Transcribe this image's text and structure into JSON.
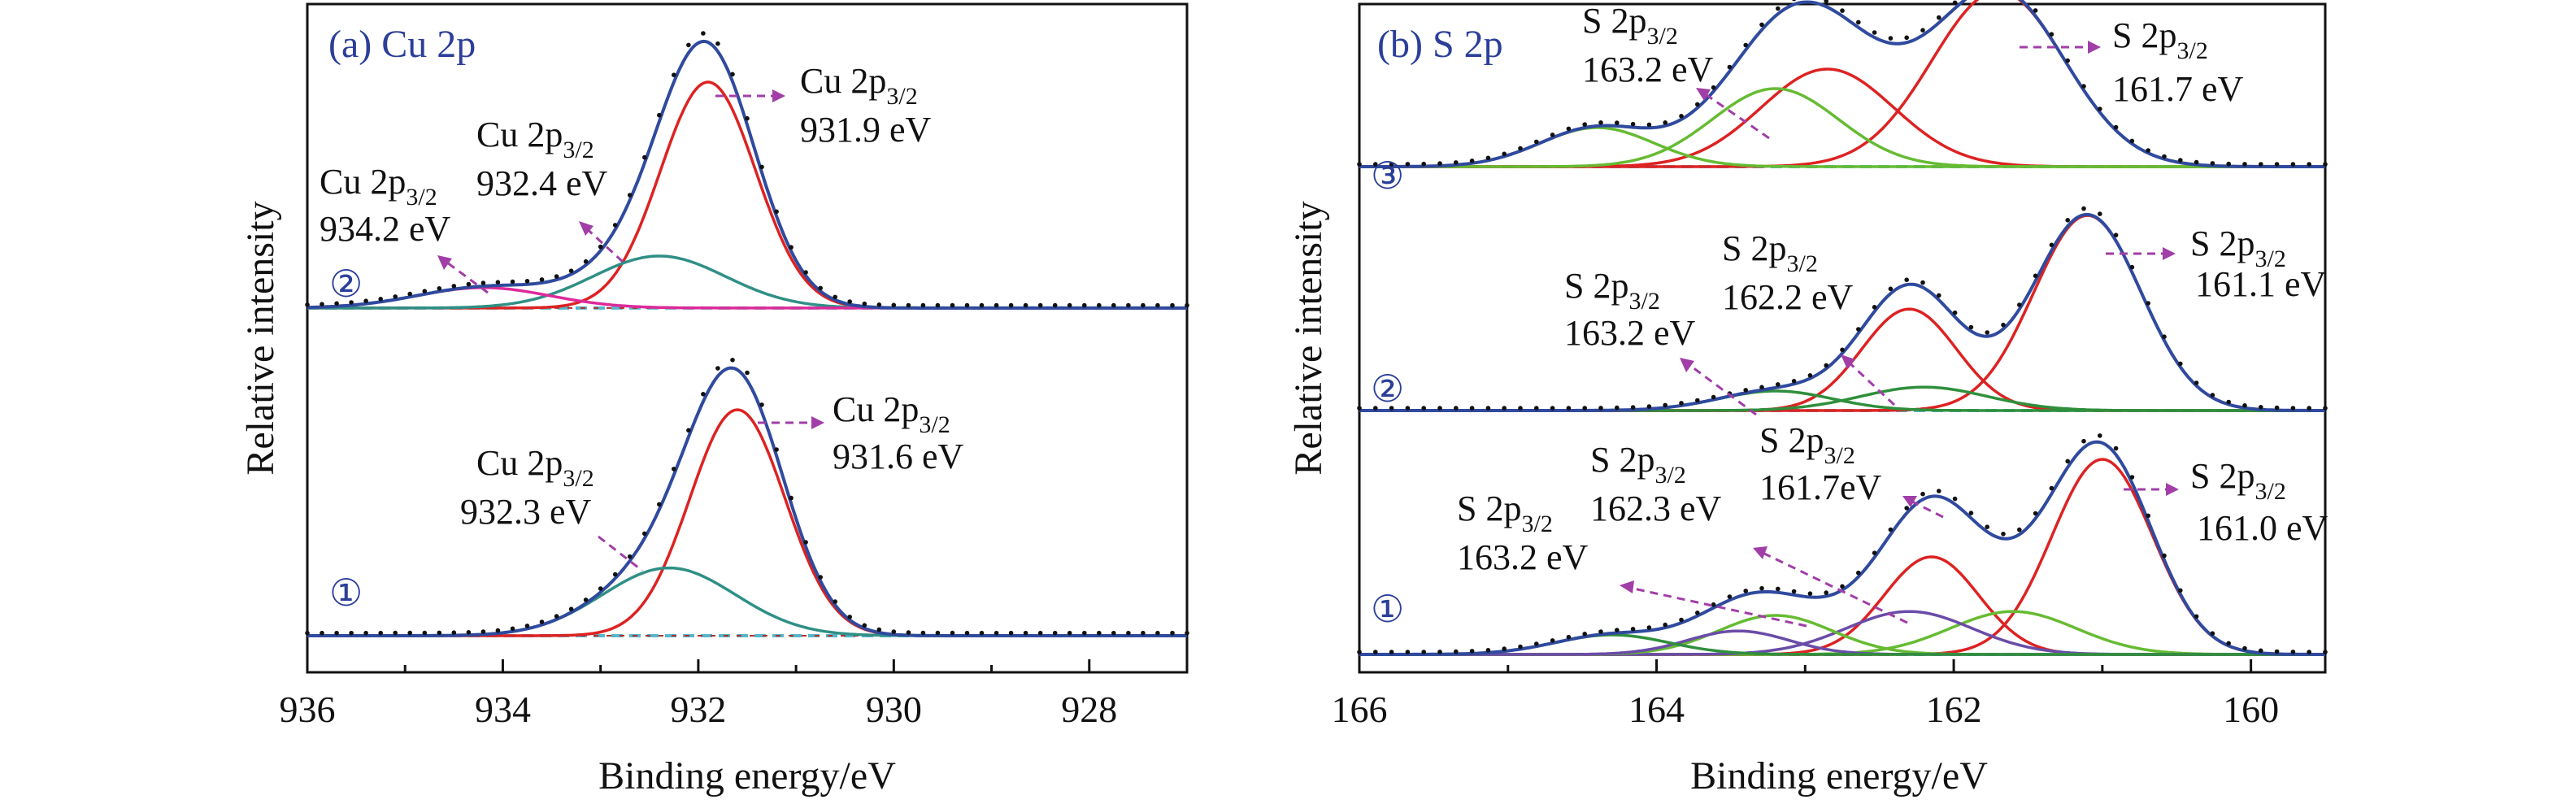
{
  "figure": {
    "bg": "#ffffff"
  },
  "chart_data": [
    {
      "id": "a",
      "type": "line",
      "title": "(a) Cu 2p",
      "xlabel": "Binding energy/eV",
      "ylabel": "Relative intensity",
      "xlim": [
        936,
        927
      ],
      "xticks": [
        936,
        934,
        932,
        930,
        928
      ],
      "y_ticks_shown": false,
      "colors": {
        "envelope": "#2f4a9e",
        "main": "#dd2222",
        "second": "#2f8f85",
        "third": "#dd2a9a",
        "baseline": "#57b6c9",
        "measured": "#111111"
      },
      "spectra": [
        {
          "label": "①",
          "baseline": 0.0,
          "components": [
            {
              "center": 931.6,
              "amplitude": 1.0,
              "fwhm": 1.15,
              "color": "main"
            },
            {
              "center": 932.3,
              "amplitude": 0.3,
              "fwhm": 1.6,
              "color": "second"
            }
          ]
        },
        {
          "label": "②",
          "baseline": 1.45,
          "components": [
            {
              "center": 931.9,
              "amplitude": 1.0,
              "fwhm": 1.15,
              "color": "main"
            },
            {
              "center": 932.4,
              "amplitude": 0.23,
              "fwhm": 1.6,
              "color": "second"
            },
            {
              "center": 934.2,
              "amplitude": 0.09,
              "fwhm": 1.6,
              "color": "third"
            }
          ]
        }
      ],
      "annotations": [
        {
          "main": "Cu 2p",
          "sub": "3/2",
          "value": "931.6 eV"
        },
        {
          "main": "Cu 2p",
          "sub": "3/2",
          "value": "932.3 eV"
        },
        {
          "main": "Cu 2p",
          "sub": "3/2",
          "value": "931.9 eV"
        },
        {
          "main": "Cu 2p",
          "sub": "3/2",
          "value": "932.4 eV"
        },
        {
          "main": "Cu 2p",
          "sub": "3/2",
          "value": "934.2 eV"
        }
      ]
    },
    {
      "id": "b",
      "type": "line",
      "title": "(b) S 2p",
      "xlabel": "Binding energy/eV",
      "ylabel": "Relative intensity",
      "xlim": [
        166,
        159.5
      ],
      "xticks": [
        166,
        164,
        162,
        160
      ],
      "y_ticks_shown": false,
      "colors": {
        "envelope": "#2f4a9e",
        "main": "#dd2222",
        "second": "#66bb33",
        "third": "#2f8f3c",
        "fourth": "#6a4ca8",
        "baseline": "#57b6c9",
        "measured": "#111111"
      },
      "spectra": [
        {
          "label": "①",
          "baseline": 0.0,
          "components": [
            {
              "center": 161.0,
              "amplitude": 1.0,
              "fwhm": 0.8,
              "color": "main"
            },
            {
              "center": 162.15,
              "amplitude": 0.5,
              "fwhm": 0.75,
              "color": "main"
            },
            {
              "center": 161.6,
              "amplitude": 0.22,
              "fwhm": 1.0,
              "color": "second"
            },
            {
              "center": 162.3,
              "amplitude": 0.22,
              "fwhm": 1.0,
              "color": "fourth"
            },
            {
              "center": 163.2,
              "amplitude": 0.2,
              "fwhm": 0.9,
              "color": "second"
            },
            {
              "center": 163.45,
              "amplitude": 0.12,
              "fwhm": 0.8,
              "color": "fourth"
            },
            {
              "center": 164.3,
              "amplitude": 0.1,
              "fwhm": 0.9,
              "color": "third"
            }
          ]
        },
        {
          "label": "②",
          "baseline": 1.25,
          "components": [
            {
              "center": 161.1,
              "amplitude": 1.0,
              "fwhm": 0.85,
              "color": "main"
            },
            {
              "center": 162.3,
              "amplitude": 0.52,
              "fwhm": 0.75,
              "color": "main"
            },
            {
              "center": 162.2,
              "amplitude": 0.12,
              "fwhm": 1.0,
              "color": "third"
            },
            {
              "center": 163.2,
              "amplitude": 0.1,
              "fwhm": 0.9,
              "color": "third"
            }
          ]
        },
        {
          "label": "③",
          "baseline": 2.5,
          "components": [
            {
              "center": 161.7,
              "amplitude": 0.9,
              "fwhm": 1.05,
              "color": "main"
            },
            {
              "center": 162.85,
              "amplitude": 0.5,
              "fwhm": 1.05,
              "color": "main"
            },
            {
              "center": 163.2,
              "amplitude": 0.4,
              "fwhm": 1.0,
              "color": "second"
            },
            {
              "center": 164.4,
              "amplitude": 0.2,
              "fwhm": 0.9,
              "color": "second"
            }
          ]
        }
      ],
      "annotations": [
        {
          "main": "S 2p",
          "sub": "3/2",
          "value": "161.0 eV"
        },
        {
          "main": "S 2p",
          "sub": "3/2",
          "value": "161.7eV"
        },
        {
          "main": "S 2p",
          "sub": "3/2",
          "value": "162.3 eV"
        },
        {
          "main": "S 2p",
          "sub": "3/2",
          "value": "163.2 eV"
        },
        {
          "main": "S 2p",
          "sub": "3/2",
          "value": "161.1 eV"
        },
        {
          "main": "S 2p",
          "sub": "3/2",
          "value": "162.2 eV"
        },
        {
          "main": "S 2p",
          "sub": "3/2",
          "value": "163.2 eV"
        },
        {
          "main": "S 2p",
          "sub": "3/2",
          "value": "161.7 eV"
        },
        {
          "main": "S 2p",
          "sub": "3/2",
          "value": "163.2 eV"
        }
      ]
    }
  ]
}
